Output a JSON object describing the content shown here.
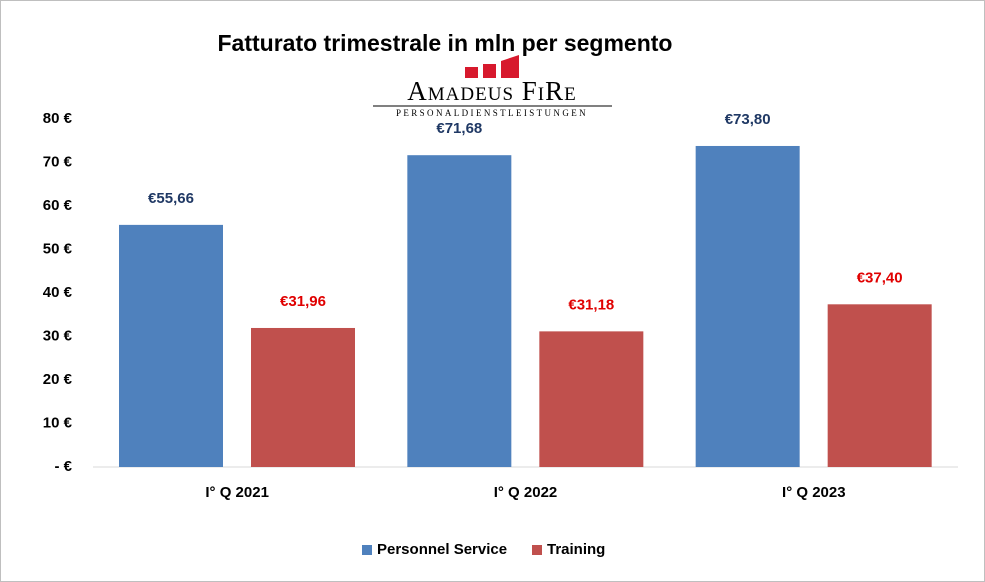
{
  "chart_data": {
    "type": "bar",
    "title": "Fatturato trimestrale in mln per segmento",
    "logo_text": "Amadeus FiRe",
    "logo_subtext": "Personaldienstleistungen",
    "categories": [
      "I° Q 2021",
      "I° Q 2022",
      "I° Q 2023"
    ],
    "series": [
      {
        "name": "Personnel Service",
        "color": "#4f81bd",
        "label_color": "#1f3864",
        "values": [
          55.66,
          71.68,
          73.8
        ],
        "value_labels": [
          "€55,66",
          "€71,68",
          "€73,80"
        ]
      },
      {
        "name": "Training",
        "color": "#c0504d",
        "label_color": "#e00000",
        "values": [
          31.96,
          31.18,
          37.4
        ],
        "value_labels": [
          "€31,96",
          "€31,18",
          "€37,40"
        ]
      }
    ],
    "ylim": [
      0,
      80
    ],
    "yticks": [
      {
        "value": 0,
        "label": "- €"
      },
      {
        "value": 10,
        "label": "10 €"
      },
      {
        "value": 20,
        "label": "20 €"
      },
      {
        "value": 30,
        "label": "30 €"
      },
      {
        "value": 40,
        "label": "40 €"
      },
      {
        "value": 50,
        "label": "50 €"
      },
      {
        "value": 60,
        "label": "60 €"
      },
      {
        "value": 70,
        "label": "70 €"
      },
      {
        "value": 80,
        "label": "80 €"
      }
    ],
    "grid": false,
    "legend": "bottom"
  }
}
